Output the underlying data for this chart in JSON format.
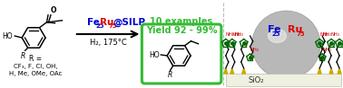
{
  "conditions": "H₂, 175°C",
  "result_line1": "10 examples",
  "result_line2": "Yield 92 - 99%",
  "r_label": "R =",
  "r_values_line1": "CF₃, F, Cl, OH,",
  "r_values_line2": "H, Me, OMe, OAc",
  "sio2_label": "SiO₂",
  "fe_color": "#0000CC",
  "ru_color": "#DD0000",
  "silp_color": "#0000CC",
  "green_box_color": "#33BB33",
  "green_text_color": "#33BB33",
  "background_color": "#FFFFFF",
  "divider_color": "#BBBBBB",
  "fig_width": 3.78,
  "fig_height": 0.98,
  "dpi": 100
}
